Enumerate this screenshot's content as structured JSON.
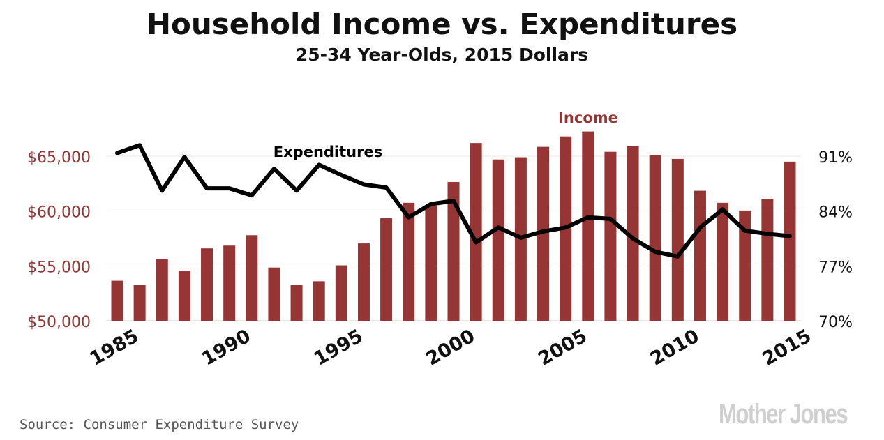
{
  "title": "Household Income vs. Expenditures",
  "subtitle": "25-34 Year-Olds, 2015 Dollars",
  "source": "Source: Consumer Expenditure Survey",
  "logo": "Mother Jones",
  "colors": {
    "income": "#963634",
    "expenditures": "#000000",
    "grid": "#e8e8e8",
    "left_axis_text": "#963634"
  },
  "chart_data": {
    "type": "bar+line",
    "grid": true,
    "x_ticks": [
      "1985",
      "1990",
      "1995",
      "2000",
      "2005",
      "2010",
      "2015"
    ],
    "y_left": {
      "lim": [
        50000,
        65000
      ],
      "ticks": [
        "$50,000",
        "$55,000",
        "$60,000",
        "$65,000"
      ],
      "tick_values": [
        50000,
        55000,
        60000,
        65000
      ]
    },
    "y_right": {
      "lim": [
        70,
        91
      ],
      "ticks": [
        "70%",
        "77%",
        "84%",
        "91%"
      ],
      "tick_values": [
        70,
        77,
        84,
        91
      ]
    },
    "series": [
      {
        "name": "Income",
        "type": "bar",
        "axis": "left",
        "x": [
          1985,
          1986,
          1987,
          1988,
          1989,
          1990,
          1991,
          1992,
          1993,
          1994,
          1995,
          1996,
          1997,
          1998,
          1999,
          2000,
          2001,
          2002,
          2003,
          2004,
          2005,
          2006,
          2007,
          2008,
          2009,
          2010,
          2011,
          2012,
          2013,
          2014,
          2015
        ],
        "values": [
          53650,
          53300,
          55600,
          54550,
          56600,
          56850,
          57800,
          54850,
          53300,
          53600,
          55050,
          57050,
          59350,
          60750,
          60500,
          62650,
          66200,
          64700,
          64900,
          65850,
          66800,
          67250,
          65400,
          65900,
          65100,
          64750,
          61850,
          60750,
          60050,
          61100,
          64500
        ]
      },
      {
        "name": "Expenditures",
        "type": "line",
        "axis": "right",
        "x": [
          1985,
          1986,
          1987,
          1988,
          1989,
          1990,
          1991,
          1992,
          1993,
          1994,
          1995,
          1996,
          1997,
          1998,
          1999,
          2000,
          2001,
          2002,
          2003,
          2004,
          2005,
          2006,
          2007,
          2008,
          2009,
          2010,
          2011,
          2012,
          2013,
          2014,
          2015
        ],
        "values": [
          91.4,
          92.4,
          86.6,
          90.9,
          86.9,
          86.9,
          86.0,
          89.4,
          86.6,
          89.9,
          88.6,
          87.4,
          87.0,
          83.2,
          84.9,
          85.3,
          80.0,
          81.9,
          80.6,
          81.4,
          81.9,
          83.2,
          83.0,
          80.5,
          78.8,
          78.2,
          81.9,
          84.2,
          81.5,
          81.1,
          80.8
        ]
      }
    ],
    "annotations": [
      {
        "text": "Expenditures",
        "series": "Expenditures"
      },
      {
        "text": "Income",
        "series": "Income"
      }
    ]
  }
}
